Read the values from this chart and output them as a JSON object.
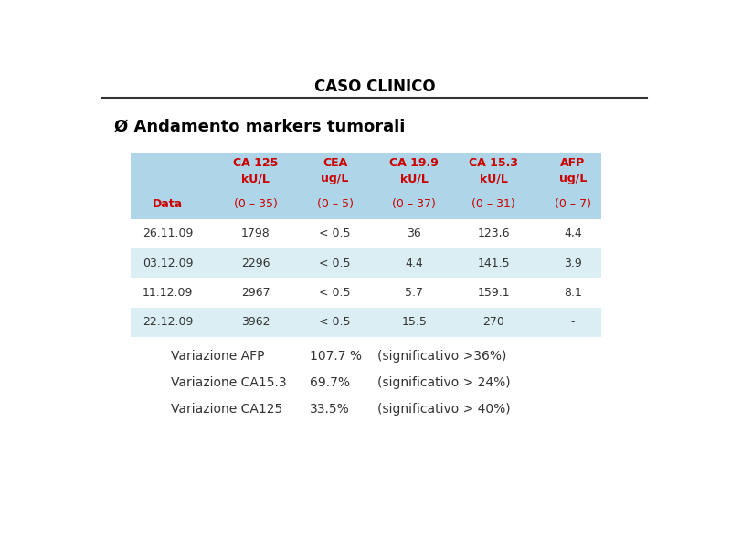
{
  "title": "CASO CLINICO",
  "bg_color": "#ffffff",
  "title_color": "#000000",
  "subtitle_color": "#000000",
  "table_header_bg": "#aed6e8",
  "table_row_alt_bg": "#daeef3",
  "table_row_bg": "#ffffff",
  "header_red": "#cc0000",
  "data_color": "#333333",
  "col_headers": [
    "CA 125\nkU/L",
    "CEA\nug/L",
    "CA 19.9\nkU/L",
    "CA 15.3\nkU/L",
    "AFP\nug/L"
  ],
  "range_row": [
    "(0 – 35)",
    "(0 – 5)",
    "(0 – 37)",
    "(0 – 31)",
    "(0 – 7)"
  ],
  "data_rows": [
    [
      "26.11.09",
      "1798",
      "< 0.5",
      "36",
      "123,6",
      "4,4"
    ],
    [
      "03.12.09",
      "2296",
      "< 0.5",
      "4.4",
      "141.5",
      "3.9"
    ],
    [
      "11.12.09",
      "2967",
      "< 0.5",
      "5.7",
      "159.1",
      "8.1"
    ],
    [
      "22.12.09",
      "3962",
      "< 0.5",
      "15.5",
      "270",
      "-"
    ]
  ],
  "variation_lines": [
    [
      "Variazione AFP",
      "107.7 %",
      "(significativo >36%)"
    ],
    [
      "Variazione CA15.3",
      "69.7%",
      "(significativo > 24%)"
    ],
    [
      "Variazione CA125",
      "33.5%",
      "(significativo > 40%)"
    ]
  ]
}
